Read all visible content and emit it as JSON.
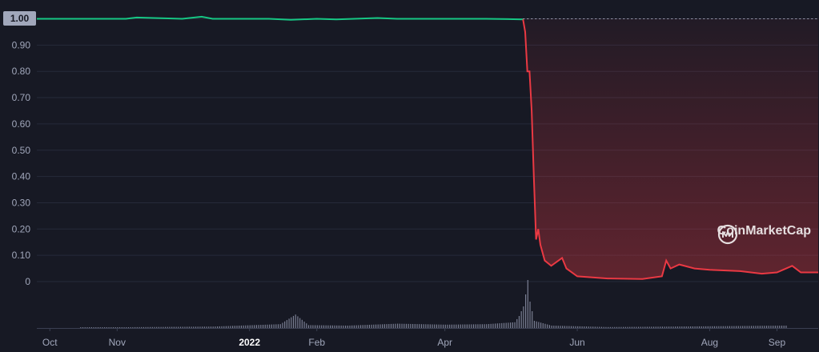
{
  "watermark": {
    "text": "CoinMarketCap",
    "icon": "coinmarketcap-logo-icon"
  },
  "current_price_label": "1.00",
  "colors": {
    "background": "#171924",
    "up_line": "#16c784",
    "down_line": "#ea3943",
    "down_fill": "#ea3943",
    "grid": "#262a3a",
    "tick": "#a1a7bb",
    "volume": "#7a7f93",
    "price_tag_bg": "#a1a7bb"
  },
  "chart_data": {
    "type": "line",
    "title": "",
    "xlabel": "",
    "ylabel": "",
    "ylim": [
      0,
      1.0
    ],
    "y_ticks": [
      "0",
      "0.10",
      "0.20",
      "0.30",
      "0.40",
      "0.50",
      "0.60",
      "0.70",
      "0.80",
      "0.90",
      "1.00"
    ],
    "x_ticks": [
      {
        "label": "Oct",
        "date": "2021-10-01"
      },
      {
        "label": "Nov",
        "date": "2021-11-01"
      },
      {
        "label": "2022",
        "date": "2022-01-01",
        "bold": true
      },
      {
        "label": "Feb",
        "date": "2022-02-01"
      },
      {
        "label": "Apr",
        "date": "2022-04-01"
      },
      {
        "label": "Jun",
        "date": "2022-06-01"
      },
      {
        "label": "Aug",
        "date": "2022-08-01"
      },
      {
        "label": "Sep",
        "date": "2022-09-01"
      }
    ],
    "x_range": [
      "2021-09-25",
      "2022-09-20"
    ],
    "grid": true,
    "series": [
      {
        "points": [
          [
            "2021-09-25",
            1.0
          ],
          [
            "2021-10-15",
            1.0
          ],
          [
            "2021-11-05",
            1.0
          ],
          [
            "2021-11-10",
            1.005
          ],
          [
            "2021-12-01",
            1.0
          ],
          [
            "2021-12-10",
            1.008
          ],
          [
            "2021-12-15",
            1.0
          ],
          [
            "2022-01-10",
            1.0
          ],
          [
            "2022-01-20",
            0.996
          ],
          [
            "2022-02-01",
            1.0
          ],
          [
            "2022-02-10",
            0.998
          ],
          [
            "2022-03-01",
            1.003
          ],
          [
            "2022-03-10",
            1.0
          ],
          [
            "2022-04-01",
            1.0
          ],
          [
            "2022-04-20",
            1.0
          ],
          [
            "2022-05-07",
            0.998
          ],
          [
            "2022-05-08",
            0.95
          ],
          [
            "2022-05-09",
            0.8
          ],
          [
            "2022-05-10",
            0.8
          ],
          [
            "2022-05-11",
            0.65
          ],
          [
            "2022-05-12",
            0.4
          ],
          [
            "2022-05-13",
            0.16
          ],
          [
            "2022-05-14",
            0.2
          ],
          [
            "2022-05-15",
            0.14
          ],
          [
            "2022-05-17",
            0.08
          ],
          [
            "2022-05-20",
            0.06
          ],
          [
            "2022-05-25",
            0.09
          ],
          [
            "2022-05-27",
            0.05
          ],
          [
            "2022-06-01",
            0.02
          ],
          [
            "2022-06-15",
            0.012
          ],
          [
            "2022-07-01",
            0.01
          ],
          [
            "2022-07-10",
            0.02
          ],
          [
            "2022-07-12",
            0.08
          ],
          [
            "2022-07-14",
            0.05
          ],
          [
            "2022-07-18",
            0.065
          ],
          [
            "2022-07-25",
            0.05
          ],
          [
            "2022-08-01",
            0.045
          ],
          [
            "2022-08-15",
            0.04
          ],
          [
            "2022-08-25",
            0.03
          ],
          [
            "2022-09-01",
            0.035
          ],
          [
            "2022-09-08",
            0.06
          ],
          [
            "2022-09-12",
            0.035
          ],
          [
            "2022-09-20",
            0.035
          ]
        ]
      }
    ],
    "volume": {
      "points": [
        [
          "2021-10-15",
          0.01
        ],
        [
          "2021-11-15",
          0.02
        ],
        [
          "2021-12-15",
          0.03
        ],
        [
          "2022-01-15",
          0.08
        ],
        [
          "2022-01-22",
          0.28
        ],
        [
          "2022-01-28",
          0.06
        ],
        [
          "2022-02-15",
          0.05
        ],
        [
          "2022-03-10",
          0.09
        ],
        [
          "2022-04-01",
          0.07
        ],
        [
          "2022-04-20",
          0.08
        ],
        [
          "2022-05-03",
          0.12
        ],
        [
          "2022-05-05",
          0.25
        ],
        [
          "2022-05-07",
          0.45
        ],
        [
          "2022-05-08",
          0.7
        ],
        [
          "2022-05-09",
          1.0
        ],
        [
          "2022-05-10",
          0.55
        ],
        [
          "2022-05-12",
          0.15
        ],
        [
          "2022-05-20",
          0.05
        ],
        [
          "2022-06-15",
          0.02
        ],
        [
          "2022-07-15",
          0.03
        ],
        [
          "2022-09-05",
          0.05
        ]
      ]
    }
  }
}
